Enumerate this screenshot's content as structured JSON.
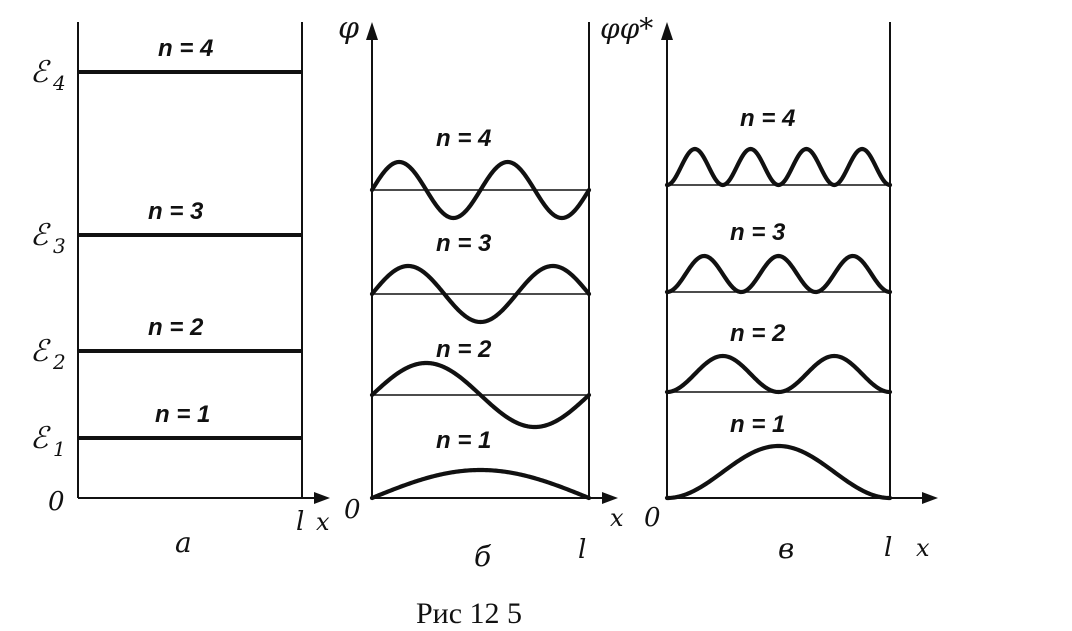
{
  "panel_a": {
    "levels": [
      {
        "n_label": "n = 1",
        "energy_label": "ℰ",
        "energy_sub": "1",
        "n": 1
      },
      {
        "n_label": "n = 2",
        "energy_label": "ℰ",
        "energy_sub": "2",
        "n": 2
      },
      {
        "n_label": "n = 3",
        "energy_label": "ℰ",
        "energy_sub": "3",
        "n": 3
      },
      {
        "n_label": "n = 4",
        "energy_label": "ℰ",
        "energy_sub": "4",
        "n": 4
      }
    ],
    "origin_label": "0",
    "l_label": "l",
    "x_label": "x",
    "panel_label": "а"
  },
  "panel_b": {
    "y_label": "φ",
    "origin_label": "0",
    "l_label": "l",
    "x_label": "x",
    "panel_label": "б",
    "states": [
      {
        "n": 1,
        "n_label": "n = 1"
      },
      {
        "n": 2,
        "n_label": "n = 2"
      },
      {
        "n": 3,
        "n_label": "n = 3"
      },
      {
        "n": 4,
        "n_label": "n = 4"
      }
    ]
  },
  "panel_c": {
    "y_label": "φφ*",
    "origin_label": "0",
    "l_label": "l",
    "x_label": "x",
    "panel_label": "в",
    "states": [
      {
        "n": 1,
        "n_label": "n = 1"
      },
      {
        "n": 2,
        "n_label": "n = 2"
      },
      {
        "n": 3,
        "n_label": "n = 3"
      },
      {
        "n": 4,
        "n_label": "n = 4"
      }
    ]
  },
  "caption": "Рис 12 5"
}
